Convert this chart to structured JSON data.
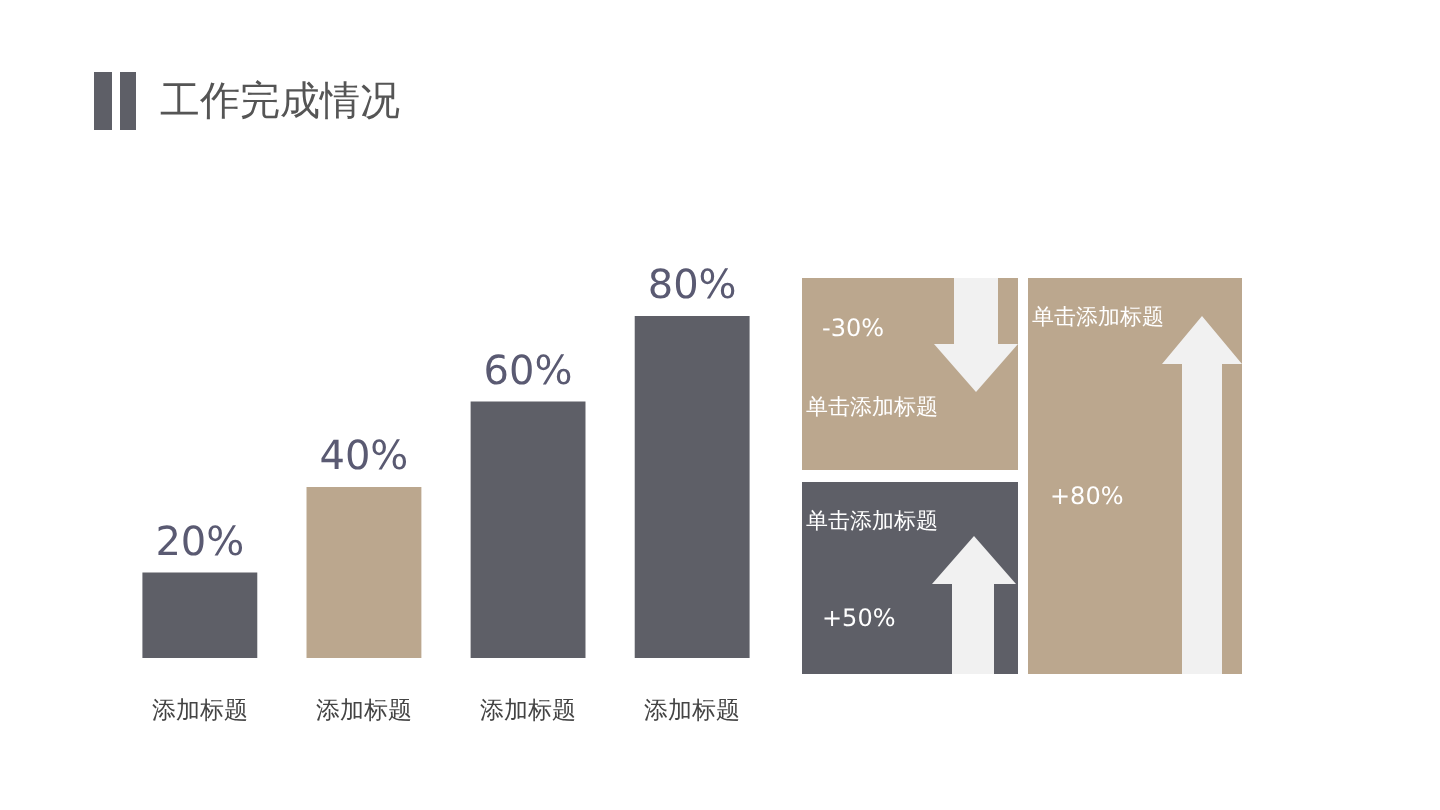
{
  "chart_data": {
    "type": "bar",
    "title": "工作完成情况",
    "categories": [
      "添加标题",
      "添加标题",
      "添加标题",
      "添加标题"
    ],
    "values": [
      20,
      40,
      60,
      80
    ],
    "colors": [
      "#5e5f67",
      "#bba78e",
      "#5e5f67",
      "#5e5f67"
    ],
    "data_labels": true,
    "value_labels": [
      "20%",
      "40%",
      "60%",
      "80%"
    ],
    "annotations": [
      "-30%",
      "单击添加标题",
      "单击添加标题",
      "+50%",
      "单击添加标题",
      "+80%"
    ]
  }
}
